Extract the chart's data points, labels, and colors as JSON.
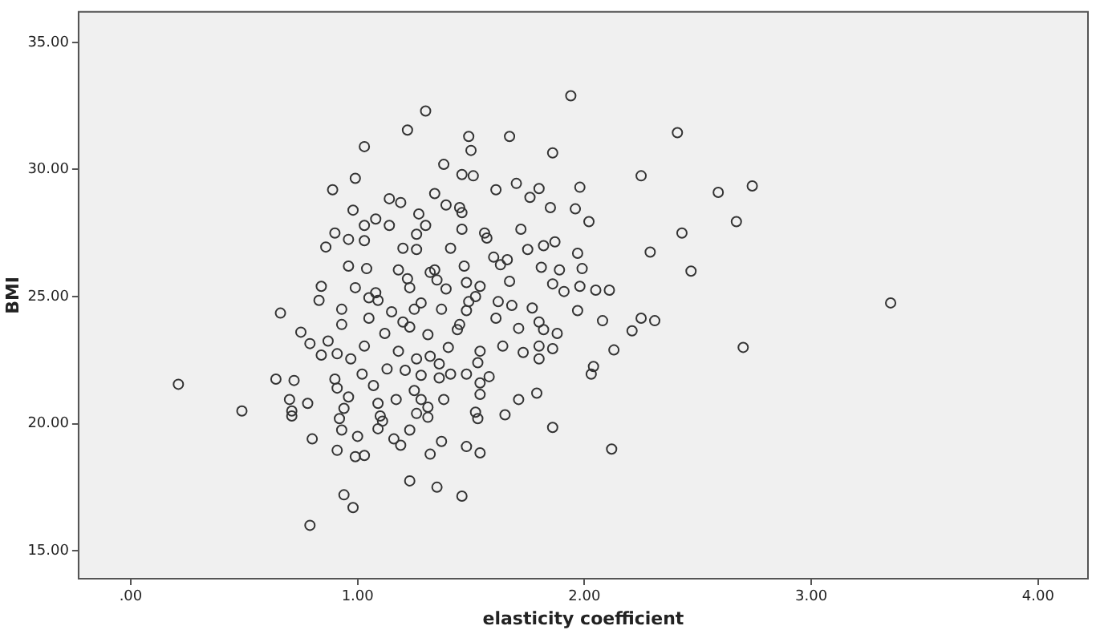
{
  "chart_data": {
    "type": "scatter",
    "xlabel": "elasticity coefficient",
    "ylabel": "BMI",
    "marker": "circle",
    "grid": false,
    "legend": false,
    "xlim": [
      -0.23,
      4.22
    ],
    "ylim": [
      13.9,
      36.2
    ],
    "xticks": [
      {
        "value": 0,
        "label": ".00"
      },
      {
        "value": 1,
        "label": "1.00"
      },
      {
        "value": 2,
        "label": "2.00"
      },
      {
        "value": 3,
        "label": "3.00"
      },
      {
        "value": 4,
        "label": "4.00"
      }
    ],
    "yticks": [
      {
        "value": 15,
        "label": "15.00"
      },
      {
        "value": 20,
        "label": "20.00"
      },
      {
        "value": 25,
        "label": "25.00"
      },
      {
        "value": 30,
        "label": "30.00"
      },
      {
        "value": 35,
        "label": "35.00"
      }
    ],
    "series": [
      {
        "color": "#333333",
        "x": [
          0.21,
          0.49,
          0.66,
          0.79,
          0.94,
          0.98,
          1.23,
          1.35,
          1.46,
          1.94,
          1.3,
          1.22,
          1.03,
          1.49,
          1.67,
          1.5,
          2.41,
          1.86,
          1.38,
          0.99,
          1.46,
          1.51,
          2.25,
          0.89,
          1.61,
          1.7,
          1.8,
          1.98,
          2.59,
          2.74,
          1.34,
          1.14,
          1.19,
          1.76,
          0.98,
          1.39,
          1.45,
          1.85,
          1.96,
          1.27,
          1.46,
          2.67,
          2.02,
          1.08,
          1.03,
          1.14,
          1.3,
          1.46,
          1.72,
          2.43,
          0.9,
          0.96,
          1.03,
          1.26,
          1.56,
          1.57,
          0.86,
          1.2,
          1.26,
          1.41,
          2.29,
          1.75,
          1.82,
          1.87,
          1.97,
          1.6,
          1.66,
          0.96,
          1.04,
          1.18,
          1.34,
          1.47,
          1.63,
          1.81,
          1.89,
          1.99,
          2.47,
          1.22,
          1.35,
          0.84,
          0.99,
          1.67,
          1.86,
          1.98,
          2.05,
          2.11,
          1.91,
          1.08,
          1.23,
          1.48,
          1.54,
          0.83,
          1.09,
          1.28,
          1.49,
          1.62,
          0.93,
          1.25,
          1.37,
          1.48,
          1.68,
          1.77,
          1.97,
          3.35,
          1.05,
          1.61,
          2.25,
          2.31,
          2.08,
          0.93,
          1.2,
          1.45,
          1.8,
          1.71,
          2.21,
          0.75,
          0.79,
          1.12,
          1.31,
          1.82,
          1.88,
          0.87,
          1.03,
          1.4,
          1.64,
          1.54,
          2.7,
          2.13,
          1.8,
          1.86,
          0.84,
          0.91,
          1.18,
          1.73,
          1.8,
          1.26,
          1.32,
          0.97,
          1.36,
          2.04,
          1.53,
          0.9,
          1.13,
          1.21,
          1.02,
          1.41,
          1.48,
          2.03,
          0.64,
          0.72,
          1.58,
          1.28,
          1.36,
          1.07,
          1.54,
          0.91,
          1.25,
          1.79,
          0.96,
          1.54,
          0.7,
          0.78,
          1.09,
          1.17,
          1.28,
          1.38,
          1.71,
          0.71,
          0.94,
          1.31,
          1.1,
          1.26,
          1.52,
          1.65,
          0.71,
          0.92,
          1.53,
          1.31,
          1.11,
          1.86,
          0.93,
          1.09,
          1.23,
          0.8,
          1.0,
          1.16,
          1.37,
          1.19,
          0.91,
          1.48,
          2.12,
          0.99,
          1.03,
          1.32,
          1.54,
          1.05,
          1.32,
          1.39,
          1.15,
          1.23,
          1.44,
          1.52
        ],
        "values": [
          21.55,
          20.5,
          24.35,
          16.0,
          17.2,
          16.7,
          17.75,
          17.5,
          17.15,
          32.9,
          32.3,
          31.55,
          30.9,
          31.3,
          31.3,
          30.75,
          31.45,
          30.65,
          30.2,
          29.65,
          29.8,
          29.75,
          29.75,
          29.2,
          29.2,
          29.45,
          29.25,
          29.3,
          29.1,
          29.35,
          29.05,
          28.85,
          28.7,
          28.9,
          28.4,
          28.6,
          28.5,
          28.5,
          28.45,
          28.25,
          28.3,
          27.95,
          27.95,
          28.05,
          27.8,
          27.8,
          27.8,
          27.65,
          27.65,
          27.5,
          27.5,
          27.25,
          27.2,
          27.45,
          27.5,
          27.3,
          26.95,
          26.9,
          26.85,
          26.9,
          26.75,
          26.85,
          27.0,
          27.15,
          26.7,
          26.55,
          26.45,
          26.2,
          26.1,
          26.05,
          26.05,
          26.2,
          26.25,
          26.15,
          26.05,
          26.1,
          26.0,
          25.7,
          25.65,
          25.4,
          25.35,
          25.6,
          25.5,
          25.4,
          25.25,
          25.25,
          25.2,
          25.15,
          25.35,
          25.55,
          25.4,
          24.85,
          24.85,
          24.75,
          24.8,
          24.8,
          24.5,
          24.5,
          24.5,
          24.45,
          24.65,
          24.55,
          24.45,
          24.75,
          24.15,
          24.15,
          24.15,
          24.05,
          24.05,
          23.9,
          24.0,
          23.9,
          24.0,
          23.75,
          23.65,
          23.6,
          23.15,
          23.55,
          23.5,
          23.7,
          23.55,
          23.25,
          23.05,
          23.0,
          23.05,
          22.85,
          23.0,
          22.9,
          23.05,
          22.95,
          22.7,
          22.75,
          22.85,
          22.8,
          22.55,
          22.55,
          22.65,
          22.55,
          22.35,
          22.25,
          22.4,
          21.75,
          22.15,
          22.1,
          21.95,
          21.95,
          21.95,
          21.95,
          21.75,
          21.7,
          21.85,
          21.9,
          21.8,
          21.5,
          21.6,
          21.4,
          21.3,
          21.2,
          21.05,
          21.15,
          20.95,
          20.8,
          20.8,
          20.95,
          20.95,
          20.95,
          20.95,
          20.5,
          20.6,
          20.65,
          20.3,
          20.4,
          20.45,
          20.35,
          20.3,
          20.2,
          20.2,
          20.25,
          20.1,
          19.85,
          19.75,
          19.8,
          19.75,
          19.4,
          19.5,
          19.4,
          19.3,
          19.15,
          18.95,
          19.1,
          19.0,
          18.7,
          18.75,
          18.8,
          18.85,
          24.95,
          25.95,
          25.3,
          24.4,
          23.8,
          23.7,
          25.0
        ]
      }
    ]
  }
}
